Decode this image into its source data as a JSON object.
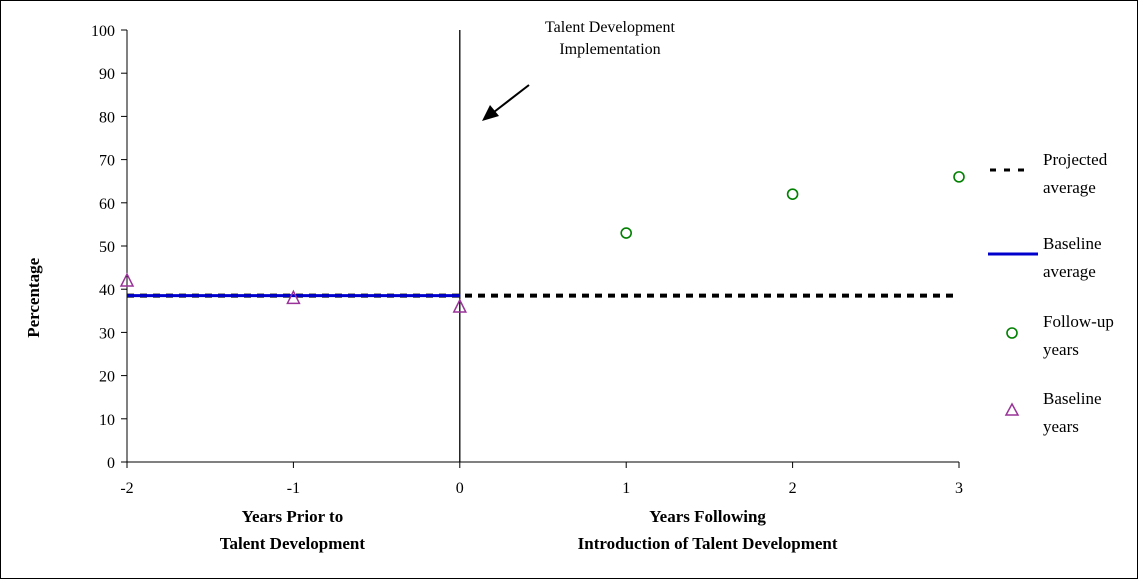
{
  "chart_data": {
    "type": "scatter",
    "title": "",
    "ylabel": "Percentage",
    "xlabel_left": [
      "Years Prior to",
      "Talent Development"
    ],
    "xlabel_right": [
      "Years Following",
      "Introduction of Talent Development"
    ],
    "xlim": [
      -2,
      3
    ],
    "ylim": [
      0,
      100
    ],
    "x_ticks": [
      -2,
      -1,
      0,
      1,
      2,
      3
    ],
    "x_tick_labels": [
      "-2",
      "-1",
      "0",
      "1",
      "2",
      "3"
    ],
    "y_ticks": [
      0,
      10,
      20,
      30,
      40,
      50,
      60,
      70,
      80,
      90,
      100
    ],
    "y_tick_labels": [
      "0",
      "10",
      "20",
      "30",
      "40",
      "50",
      "60",
      "70",
      "80",
      "90",
      "100"
    ],
    "grid": false,
    "legend_position": "right",
    "annotation": {
      "lines": [
        "Talent Development",
        "Implementation"
      ],
      "points_to_x": 0
    },
    "series": [
      {
        "name": [
          "Projected",
          "average"
        ],
        "kind": "line",
        "style": "dashed",
        "color": "#000000",
        "x": [
          -2,
          3
        ],
        "y": [
          38.5,
          38.5
        ]
      },
      {
        "name": [
          "Baseline",
          "average"
        ],
        "kind": "line",
        "style": "solid",
        "color": "#0000cc",
        "x": [
          -2,
          0
        ],
        "y": [
          38.5,
          38.5
        ]
      },
      {
        "name": [
          "Follow-up",
          "years"
        ],
        "kind": "marker",
        "marker": "circle",
        "color": "#008000",
        "x": [
          1,
          2,
          3
        ],
        "y": [
          53,
          62,
          66
        ]
      },
      {
        "name": [
          "Baseline",
          "years"
        ],
        "kind": "marker",
        "marker": "triangle",
        "color": "#993399",
        "x": [
          -2,
          -1,
          0
        ],
        "y": [
          42,
          38,
          36
        ]
      }
    ]
  }
}
